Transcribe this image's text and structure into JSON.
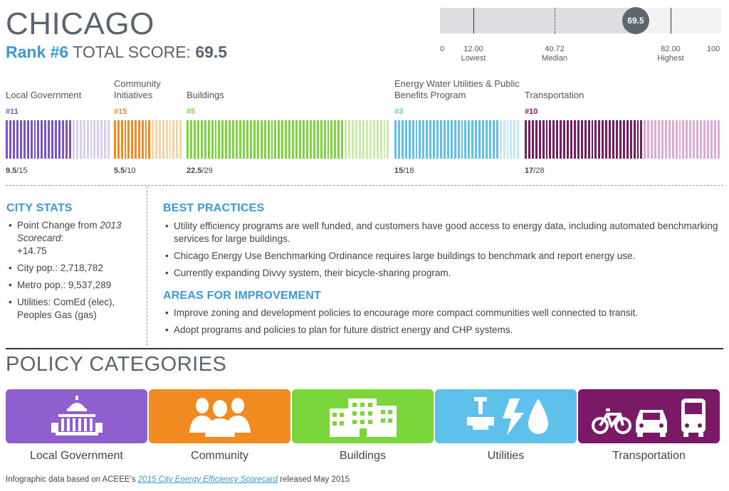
{
  "header": {
    "city": "CHICAGO",
    "rank": "Rank #6",
    "total_score_label": "TOTAL SCORE:",
    "total_score": "69.5"
  },
  "gauge": {
    "score": 69.5,
    "score_label": "69.5",
    "min_label": "0",
    "max_label": "100",
    "lowest_value": 12.0,
    "lowest_value_label": "12.00",
    "lowest_label": "Lowest",
    "median_value": 40.72,
    "median_value_label": "40.72",
    "median_label": "Median",
    "highest_value": 82.0,
    "highest_value_label": "82.00",
    "highest_label": "Highest"
  },
  "categories": [
    {
      "name": "Local Government",
      "rank": "#11",
      "score": "9.5",
      "max": "/15",
      "score_num": 9.5,
      "max_num": 15,
      "color": "#7b52c7",
      "light": "#d9cdf0"
    },
    {
      "name": "Community Initiatives",
      "rank": "#15",
      "score": "5.5",
      "max": "/10",
      "score_num": 5.5,
      "max_num": 10,
      "color": "#f28a22",
      "light": "#f9d3a8"
    },
    {
      "name": "Buildings",
      "rank": "#5",
      "score": "22.5",
      "max": "/29",
      "score_num": 22.5,
      "max_num": 29,
      "color": "#7ad63a",
      "light": "#c9eca8"
    },
    {
      "name": "Energy Water Utilities & Public Benefits Program",
      "rank": "#3",
      "score": "15",
      "max": "/18",
      "score_num": 15,
      "max_num": 18,
      "color": "#5ec1ec",
      "light": "#c3e7f7"
    },
    {
      "name": "Transportation",
      "rank": "#10",
      "score": "17",
      "max": "/28",
      "score_num": 17,
      "max_num": 28,
      "color": "#7a1a66",
      "light": "#e0a9d8"
    }
  ],
  "city_stats": {
    "title": "CITY STATS",
    "point_change_label": "Point Change from",
    "point_change_source": "2013 Scorecard",
    "point_change_colon": ":",
    "point_change_value": "+14.75",
    "city_pop": "City pop.: 2,718,782",
    "metro_pop": "Metro pop.: 9,537,289",
    "utilities": "Utilities: ComEd (elec), Peoples Gas (gas)"
  },
  "best_practices": {
    "title": "BEST PRACTICES",
    "items": [
      "Utility efficiency programs are well funded, and customers have good access to energy data, including automated benchmarking services for large buildings.",
      "Chicago Energy Use Benchmarking Ordinance requires large buildings to benchmark and report energy use.",
      "Currently expanding Divvy system, their bicycle-sharing program."
    ]
  },
  "improvement": {
    "title": "AREAS FOR IMPROVEMENT",
    "items": [
      "Improve zoning and development policies to encourage more compact communities well connected to transit.",
      "Adopt programs and policies to plan for future district energy and CHP systems."
    ]
  },
  "policy": {
    "title": "POLICY CATEGORIES",
    "tiles": [
      {
        "label": "Local Government",
        "icon": "capitol-building-icon",
        "color": "#8f5fd0"
      },
      {
        "label": "Community",
        "icon": "people-group-icon",
        "color": "#f28a22"
      },
      {
        "label": "Buildings",
        "icon": "office-buildings-icon",
        "color": "#7ad63a"
      },
      {
        "label": "Utilities",
        "icon": "utilities-icon",
        "color": "#5ec1ec"
      },
      {
        "label": "Transportation",
        "icon": "transport-icon",
        "color": "#7a1a66"
      }
    ]
  },
  "footer": {
    "prefix": "Infographic data based on ACEEE’s ",
    "link": "2015 City Energy Efficiency Scorecard",
    "suffix": " released May 2015"
  }
}
